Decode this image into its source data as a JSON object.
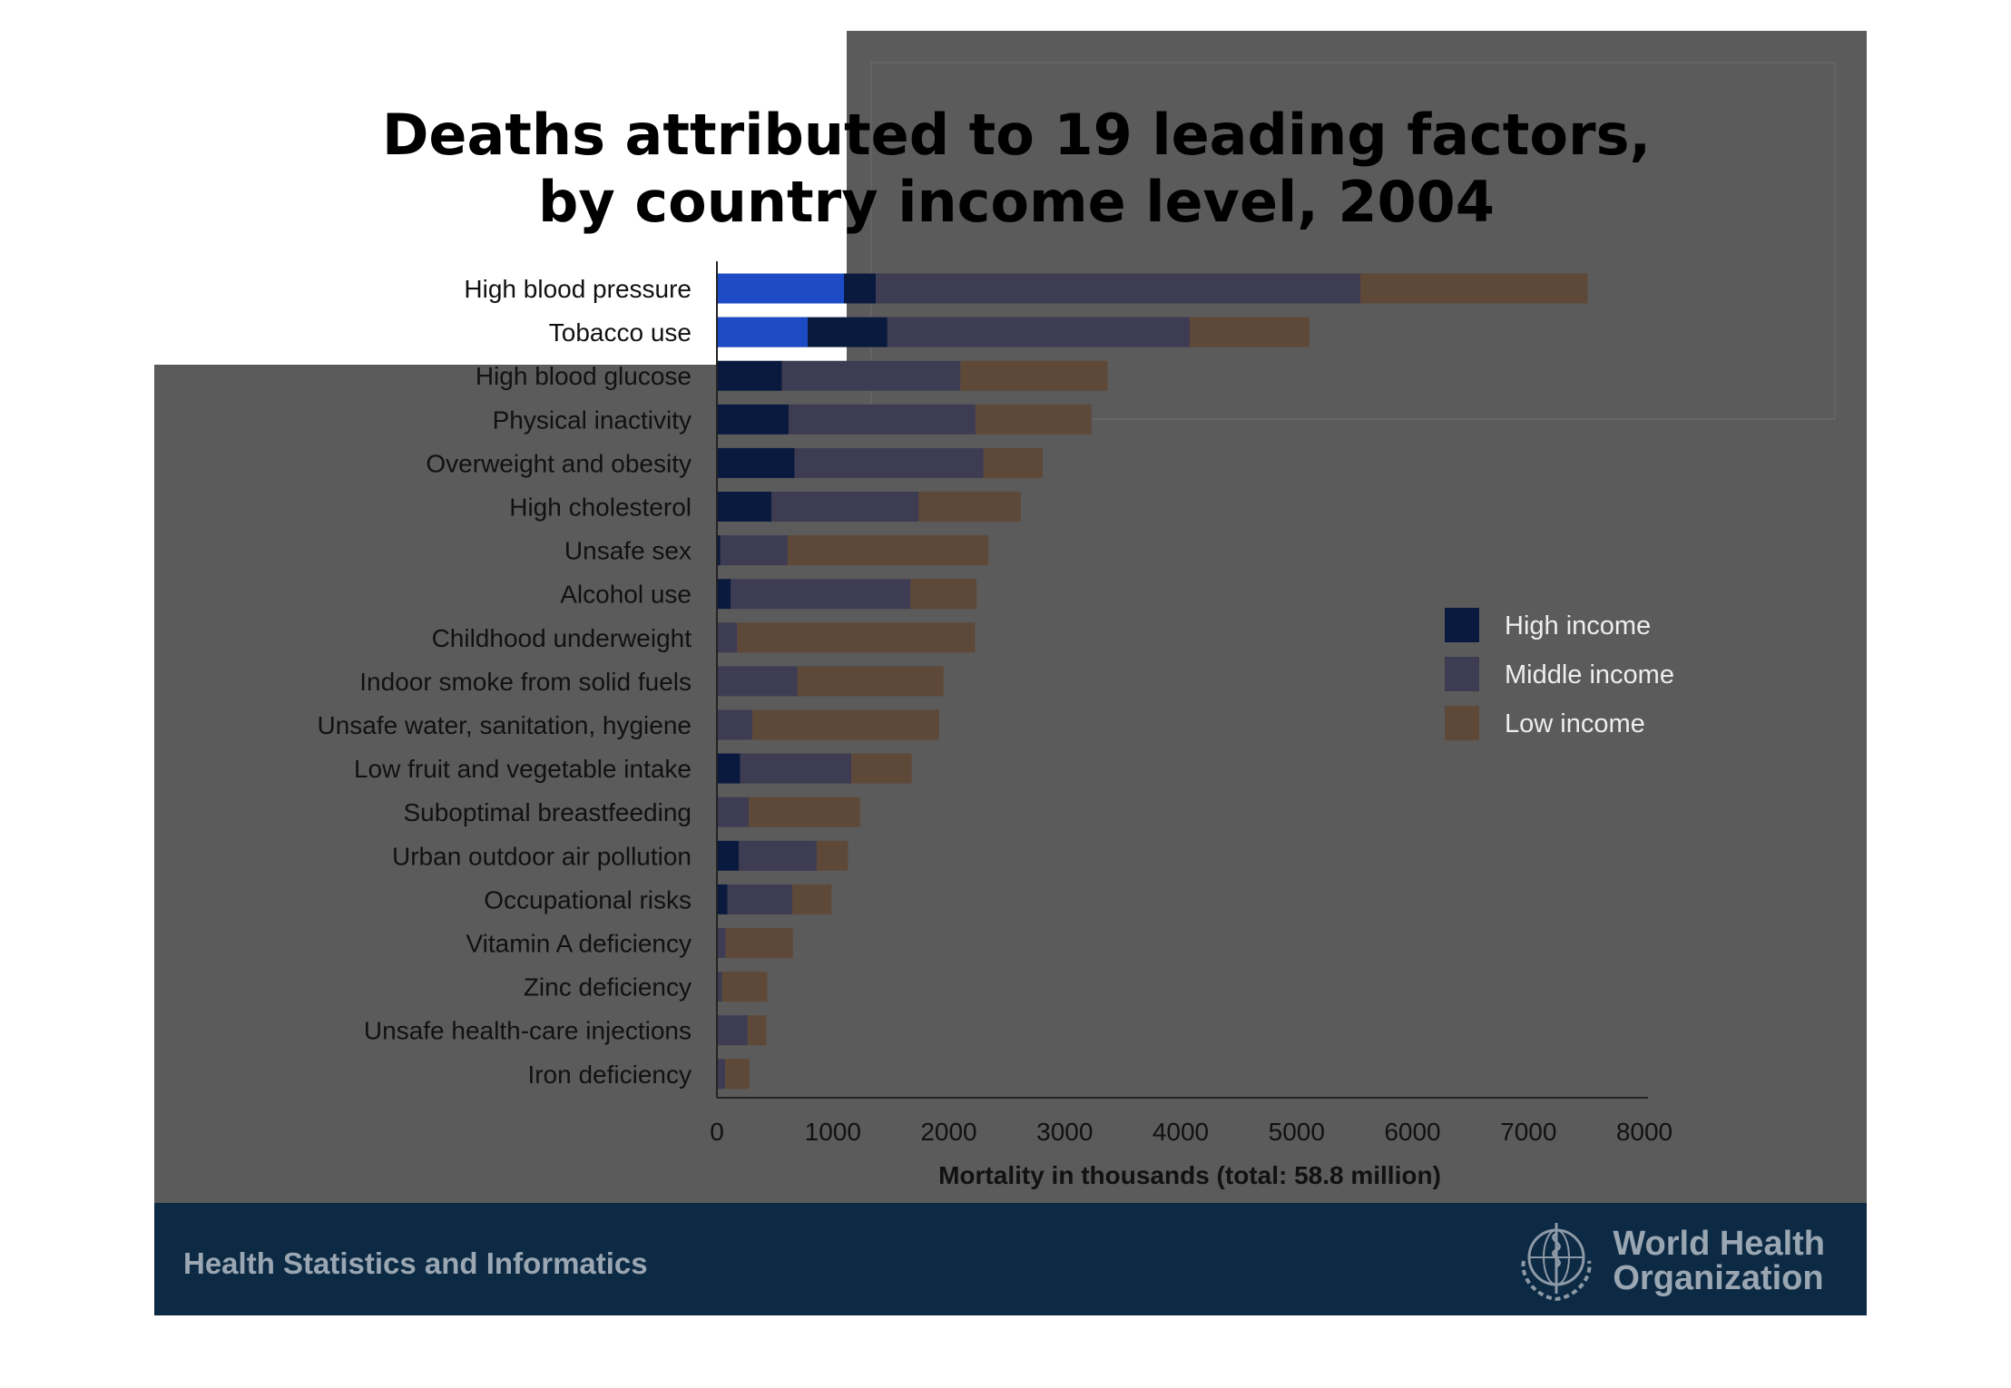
{
  "chart_data": {
    "type": "bar",
    "orientation": "horizontal",
    "stacked": true,
    "title": "Deaths attributed to 19 leading factors, by country income level, 2004",
    "title_lines": [
      "Deaths attributed to 19 leading factors,",
      "by country income level, 2004"
    ],
    "xlabel": "Mortality in thousands (total: 58.8 million)",
    "ylabel": "",
    "xlim": [
      0,
      8000
    ],
    "xticks": [
      0,
      1000,
      2000,
      3000,
      4000,
      5000,
      6000,
      7000,
      8000
    ],
    "grid": false,
    "legend_position": "right",
    "categories": [
      "High blood pressure",
      "Tobacco use",
      "High blood glucose",
      "Physical inactivity",
      "Overweight and obesity",
      "High cholesterol",
      "Unsafe sex",
      "Alcohol use",
      "Childhood underweight",
      "Indoor smoke from solid fuels",
      "Unsafe water, sanitation, hygiene",
      "Low fruit and vegetable intake",
      "Suboptimal breastfeeding",
      "Urban outdoor air pollution",
      "Occupational risks",
      "Vitamin A deficiency",
      "Zinc deficiency",
      "Unsafe health-care injections",
      "Iron deficiency"
    ],
    "series": [
      {
        "name": "High income",
        "color": "#0a1a3f",
        "values": [
          1370,
          1470,
          560,
          620,
          670,
          470,
          30,
          120,
          5,
          5,
          5,
          200,
          5,
          190,
          90,
          5,
          5,
          5,
          10
        ]
      },
      {
        "name": "Middle income",
        "color": "#3e3c52",
        "values": [
          4180,
          2610,
          1540,
          1610,
          1630,
          1270,
          580,
          1550,
          170,
          690,
          300,
          960,
          270,
          670,
          560,
          70,
          40,
          260,
          60
        ]
      },
      {
        "name": "Low income",
        "color": "#5e4838",
        "values": [
          1960,
          1030,
          1270,
          1000,
          510,
          880,
          1730,
          570,
          2050,
          1260,
          1610,
          520,
          960,
          270,
          340,
          580,
          390,
          160,
          210
        ]
      }
    ]
  },
  "footer": {
    "text": "Health Statistics and Informatics",
    "org_line1": "World Health",
    "org_line2": "Organization"
  },
  "colors": {
    "background": "#5b5b5b",
    "footer": "#0d2a44",
    "highlight": "#1f4fd1"
  },
  "icons": {
    "logo": "who-emblem-icon"
  }
}
